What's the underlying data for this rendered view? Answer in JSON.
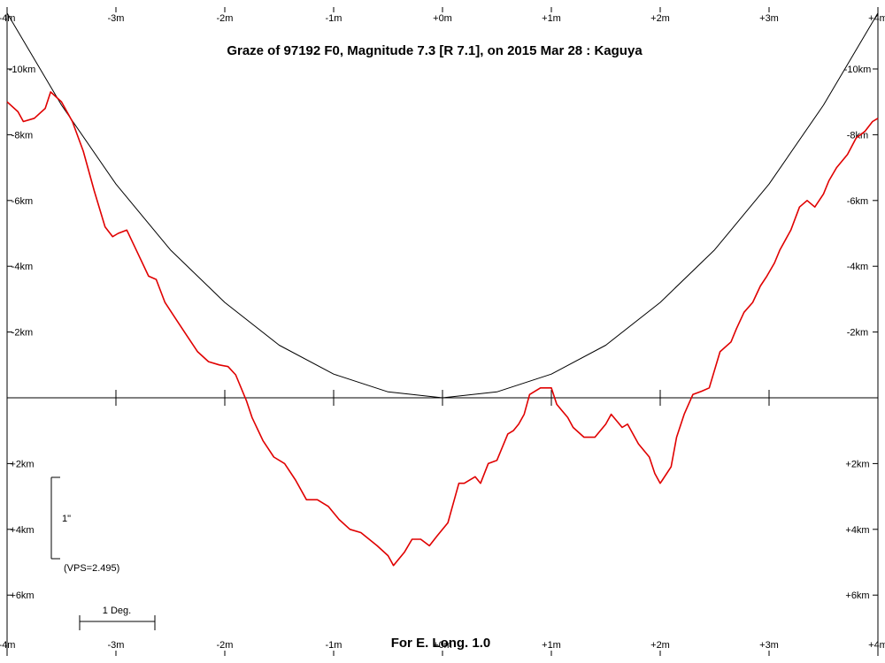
{
  "chart_data": {
    "type": "line",
    "title": "Graze of  97192 F0,  Magnitude 7.3 [R 7.1],  on 2015 Mar 28  :  Kaguya",
    "footer": "For E. Long. 1.0",
    "x_unit": "m",
    "y_unit": "km",
    "xlim": [
      -4,
      4
    ],
    "ylim": [
      -12,
      8
    ],
    "x_ticks": [
      -4,
      -3,
      -2,
      -1,
      0,
      1,
      2,
      3,
      4
    ],
    "x_tick_labels": [
      "-4m",
      "-3m",
      "-2m",
      "-1m",
      "+0m",
      "+1m",
      "+2m",
      "+3m",
      "+4m"
    ],
    "y_ticks": [
      -10,
      -8,
      -6,
      -4,
      -2,
      2,
      4,
      6
    ],
    "y_tick_labels": [
      "-10km",
      "-8km",
      "-6km",
      "-4km",
      "-2km",
      "+2km",
      "+4km",
      "+6km"
    ],
    "scale_bar": {
      "label": "1\"",
      "vps_label": "(VPS=2.495)"
    },
    "degree_bar": {
      "label": "1 Deg."
    },
    "series": [
      {
        "color": "#000000",
        "x": [
          -4.0,
          -3.5,
          -3.0,
          -2.5,
          -2.0,
          -1.5,
          -1.0,
          -0.5,
          0.0,
          0.5,
          1.0,
          1.5,
          2.0,
          2.5,
          3.0,
          3.5,
          4.0
        ],
        "y": [
          -11.7,
          -8.9,
          -6.5,
          -4.5,
          -2.9,
          -1.6,
          -0.72,
          -0.18,
          0.0,
          -0.18,
          -0.72,
          -1.6,
          -2.9,
          -4.5,
          -6.5,
          -8.9,
          -11.7
        ]
      },
      {
        "color": "#e00000",
        "x": [
          -4.0,
          -3.9,
          -3.85,
          -3.75,
          -3.65,
          -3.6,
          -3.5,
          -3.4,
          -3.3,
          -3.2,
          -3.1,
          -3.03,
          -2.98,
          -2.9,
          -2.8,
          -2.7,
          -2.63,
          -2.55,
          -2.45,
          -2.35,
          -2.25,
          -2.15,
          -2.05,
          -1.97,
          -1.9,
          -1.8,
          -1.75,
          -1.65,
          -1.55,
          -1.45,
          -1.35,
          -1.25,
          -1.15,
          -1.05,
          -0.95,
          -0.85,
          -0.75,
          -0.6,
          -0.5,
          -0.45,
          -0.35,
          -0.28,
          -0.2,
          -0.12,
          -0.05,
          0.05,
          0.15,
          0.2,
          0.3,
          0.35,
          0.42,
          0.5,
          0.6,
          0.65,
          0.7,
          0.75,
          0.8,
          0.85,
          0.9,
          1.0,
          1.05,
          1.15,
          1.2,
          1.3,
          1.4,
          1.5,
          1.55,
          1.65,
          1.7,
          1.8,
          1.9,
          1.95,
          2.0,
          2.02,
          2.1,
          2.15,
          2.22,
          2.3,
          2.38,
          2.45,
          2.55,
          2.65,
          2.7,
          2.77,
          2.85,
          2.92,
          2.98,
          3.05,
          3.1,
          3.2,
          3.28,
          3.35,
          3.42,
          3.5,
          3.55,
          3.62,
          3.72,
          3.8,
          3.88,
          3.95,
          4.0
        ],
        "y": [
          -9.0,
          -8.7,
          -8.4,
          -8.5,
          -8.8,
          -9.3,
          -9.0,
          -8.4,
          -7.5,
          -6.3,
          -5.2,
          -4.9,
          -5.0,
          -5.1,
          -4.4,
          -3.7,
          -3.6,
          -2.9,
          -2.4,
          -1.9,
          -1.4,
          -1.1,
          -1.0,
          -0.95,
          -0.7,
          0.1,
          0.6,
          1.3,
          1.8,
          2.0,
          2.5,
          3.1,
          3.1,
          3.3,
          3.7,
          4.0,
          4.1,
          4.5,
          4.8,
          5.1,
          4.7,
          4.3,
          4.3,
          4.5,
          4.2,
          3.8,
          2.6,
          2.6,
          2.4,
          2.6,
          2.0,
          1.9,
          1.1,
          1.0,
          0.8,
          0.5,
          -0.1,
          -0.2,
          -0.3,
          -0.3,
          0.2,
          0.6,
          0.9,
          1.2,
          1.2,
          0.8,
          0.5,
          0.9,
          0.8,
          1.4,
          1.8,
          2.3,
          2.6,
          2.5,
          2.1,
          1.2,
          0.5,
          -0.1,
          -0.2,
          -0.3,
          -1.4,
          -1.7,
          -2.1,
          -2.6,
          -2.9,
          -3.4,
          -3.7,
          -4.1,
          -4.5,
          -5.1,
          -5.8,
          -6.0,
          -5.8,
          -6.2,
          -6.6,
          -7.0,
          -7.4,
          -7.9,
          -8.1,
          -8.4,
          -8.5
        ]
      }
    ]
  }
}
